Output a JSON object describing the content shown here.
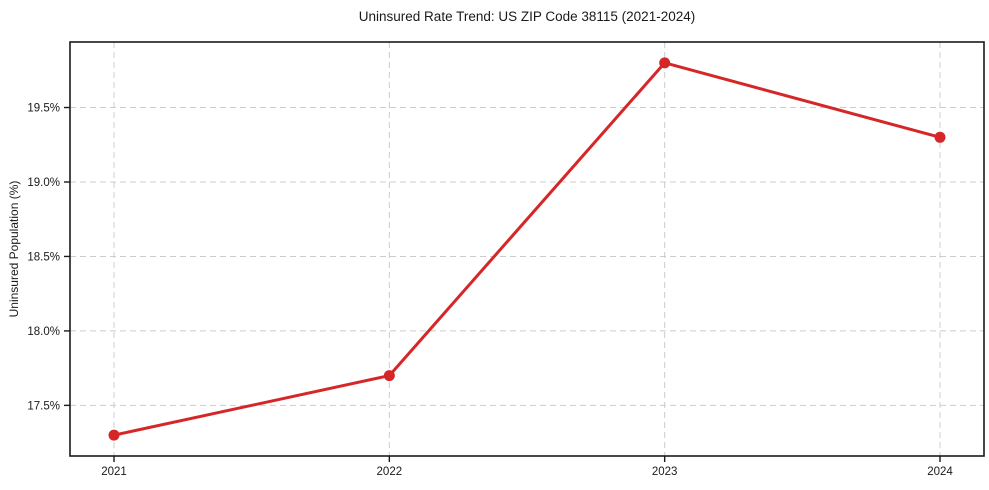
{
  "chart_data": {
    "type": "line",
    "title": "Uninsured Rate Trend: US ZIP Code 38115 (2021-2024)",
    "xlabel": "",
    "ylabel": "Uninsured Population (%)",
    "categories": [
      "2021",
      "2022",
      "2023",
      "2024"
    ],
    "series": [
      {
        "name": "Uninsured Population (%)",
        "values": [
          17.3,
          17.7,
          19.8,
          19.3
        ],
        "color": "#d62728",
        "marker": "circle"
      }
    ],
    "yticks": [
      17.5,
      18.0,
      18.5,
      19.0,
      19.5
    ],
    "ytick_labels": [
      "17.5%",
      "18.0%",
      "18.5%",
      "19.0%",
      "19.5%"
    ],
    "ylim": [
      17.16,
      19.94
    ],
    "grid": true,
    "grid_style": "dashed",
    "grid_color": "#cccccc",
    "axis_color": "#1a1a1a",
    "legend_position": "none"
  }
}
